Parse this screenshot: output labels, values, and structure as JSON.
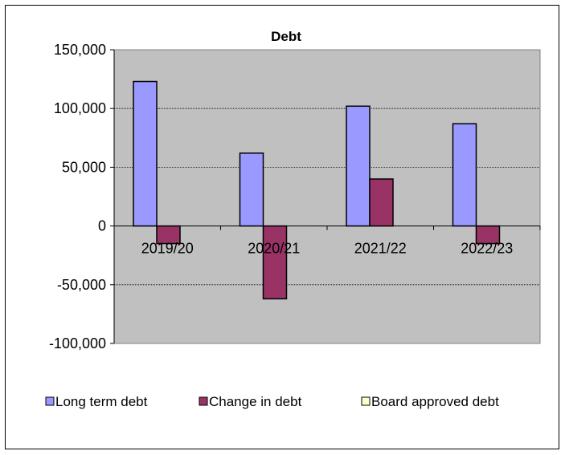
{
  "chart_data": {
    "type": "bar",
    "title": "Debt",
    "xlabel": "",
    "ylabel": "",
    "categories": [
      "2019/20",
      "2020/21",
      "2021/22",
      "2022/23"
    ],
    "series": [
      {
        "name": "Long term debt",
        "color": "#9999ff",
        "values": [
          123000,
          62000,
          102000,
          87000
        ]
      },
      {
        "name": "Change in debt",
        "color": "#993366",
        "values": [
          -15000,
          -62000,
          40000,
          -15000
        ]
      },
      {
        "name": "Board approved debt",
        "color": "#ffffcc",
        "values": [
          0,
          0,
          0,
          0
        ]
      }
    ],
    "ylim": [
      -100000,
      150000
    ],
    "yticks": [
      150000,
      100000,
      50000,
      0,
      -50000,
      -100000
    ],
    "ytick_labels": [
      "150,000",
      "100,000",
      "50,000",
      "0",
      "-50,000",
      "-100,000"
    ],
    "grid": true,
    "legend_position": "bottom",
    "plot_background": "#c0c0c0"
  }
}
